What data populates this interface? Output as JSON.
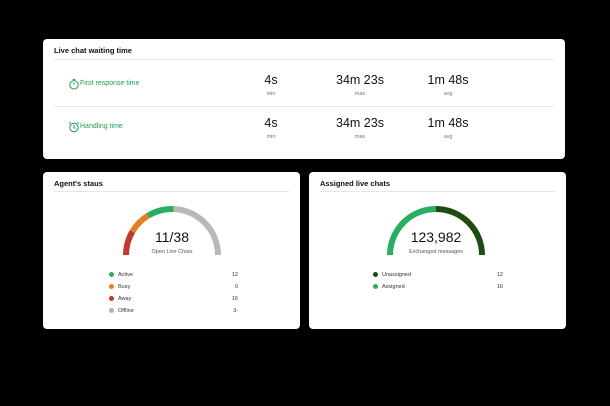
{
  "waiting": {
    "title": "Live chat waiting time",
    "rows": [
      {
        "label": "First response time",
        "icon": "stopwatch-icon",
        "metrics": [
          {
            "value": "4s",
            "label": "min"
          },
          {
            "value": "34m 23s",
            "label": "max"
          },
          {
            "value": "1m 48s",
            "label": "avg"
          }
        ]
      },
      {
        "label": "Handling time",
        "icon": "alarm-clock-icon",
        "metrics": [
          {
            "value": "4s",
            "label": "min"
          },
          {
            "value": "34m 23s",
            "label": "max"
          },
          {
            "value": "1m 48s",
            "label": "avg"
          }
        ]
      }
    ]
  },
  "agents": {
    "title": "Agent's staus",
    "gauge_value": "11/38",
    "gauge_label": "Open Live Chats",
    "legend": [
      {
        "name": "Active",
        "value": "12",
        "color": "#27ae60"
      },
      {
        "name": "Busy",
        "value": "0",
        "color": "#e67e22"
      },
      {
        "name": "Away",
        "value": "16",
        "color": "#c0392b"
      },
      {
        "name": "Offline",
        "value": "3-",
        "color": "#b0b0b0"
      }
    ]
  },
  "assigned": {
    "title": "Assigned live chats",
    "gauge_value": "123,982",
    "gauge_label": "Exchanged messages",
    "legend": [
      {
        "name": "Unassigned",
        "value": "12",
        "color": "#1e4d12"
      },
      {
        "name": "Assigned",
        "value": "16",
        "color": "#27ae60"
      }
    ]
  },
  "colors": {
    "accent": "#1e9e52",
    "background": "#000000"
  }
}
